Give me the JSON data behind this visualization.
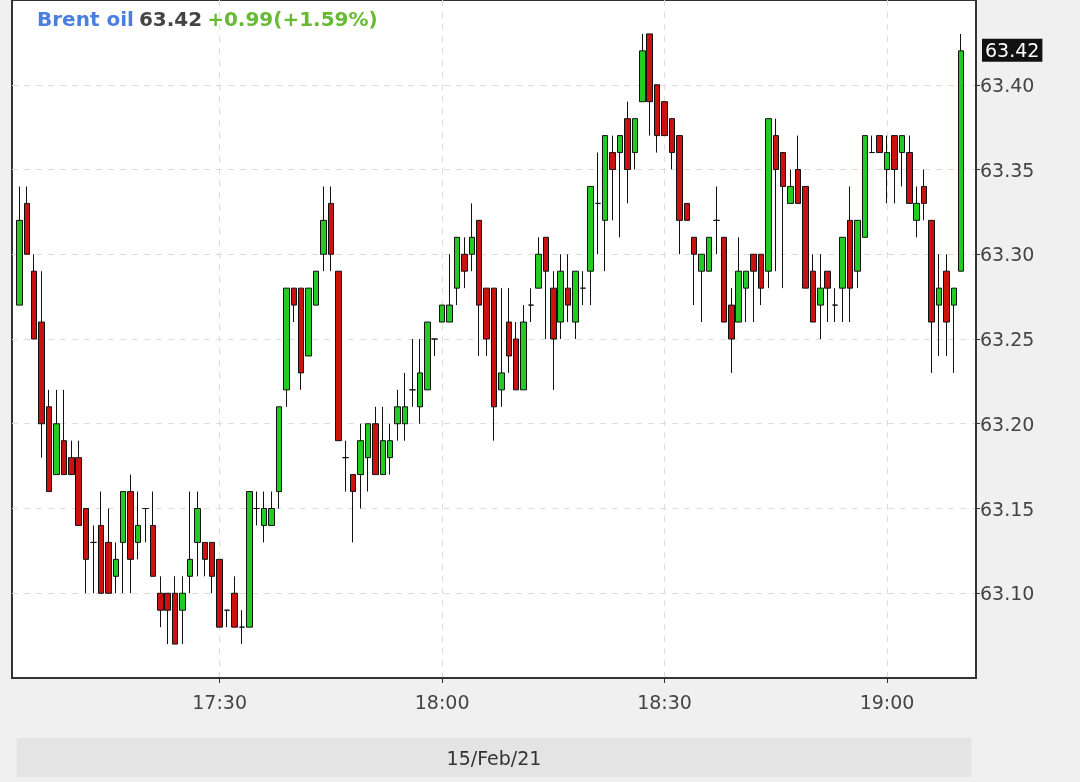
{
  "chart_data": {
    "type": "candlestick",
    "title": "Brent oil",
    "subtitle": "63.42",
    "annotations": [
      "+0.99(+1.59%)",
      "63.42"
    ],
    "xlabel": "15/Feb/21",
    "x": [
      "--02-15T17:03",
      "--02-15T17:04",
      "--02-15T17:05",
      "--02-15T17:06",
      "--02-15T17:07",
      "--02-15T17:08",
      "--02-15T17:09",
      "--02-15T17:10",
      "--02-15T17:11",
      "--02-15T17:12",
      "--02-15T17:13",
      "--02-15T17:14",
      "--02-15T17:15",
      "--02-15T17:16",
      "--02-15T17:17",
      "--02-15T17:18",
      "--02-15T17:19",
      "--02-15T17:20",
      "--02-15T17:21",
      "--02-15T17:22",
      "--02-15T17:23",
      "--02-15T17:24",
      "--02-15T17:25",
      "--02-15T17:26",
      "--02-15T17:27",
      "--02-15T17:28",
      "--02-15T17:29",
      "--02-15T17:30",
      "--02-15T17:31",
      "--02-15T17:32",
      "--02-15T17:33",
      "--02-15T17:34",
      "--02-15T17:35",
      "--02-15T17:36",
      "--02-15T17:37",
      "--02-15T17:38",
      "--02-15T17:39",
      "--02-15T17:40",
      "--02-15T17:41",
      "--02-15T17:42",
      "--02-15T17:43",
      "--02-15T17:44",
      "--02-15T17:45",
      "--02-15T17:46",
      "--02-15T17:47",
      "--02-15T17:48",
      "--02-15T17:49",
      "--02-15T17:50",
      "--02-15T17:51",
      "--02-15T17:52",
      "--02-15T17:53",
      "--02-15T17:54",
      "--02-15T17:55",
      "--02-15T17:56",
      "--02-15T17:57",
      "--02-15T17:58",
      "--02-15T17:59",
      "--02-15T18:00",
      "--02-15T18:01",
      "--02-15T18:02",
      "--02-15T18:03",
      "--02-15T18:04",
      "--02-15T18:05",
      "--02-15T18:06",
      "--02-15T18:07",
      "--02-15T18:08",
      "--02-15T18:09",
      "--02-15T18:10",
      "--02-15T18:11",
      "--02-15T18:12",
      "--02-15T18:13",
      "--02-15T18:14",
      "--02-15T18:15",
      "--02-15T18:16",
      "--02-15T18:17",
      "--02-15T18:18",
      "--02-15T18:19",
      "--02-15T18:20",
      "--02-15T18:21",
      "--02-15T18:22",
      "--02-15T18:23",
      "--02-15T18:24",
      "--02-15T18:25",
      "--02-15T18:26",
      "--02-15T18:27",
      "--02-15T18:28",
      "--02-15T18:29",
      "--02-15T18:30",
      "--02-15T18:31",
      "--02-15T18:32",
      "--02-15T18:33",
      "--02-15T18:34",
      "--02-15T18:35",
      "--02-15T18:36",
      "--02-15T18:37",
      "--02-15T18:38",
      "--02-15T18:39",
      "--02-15T18:40",
      "--02-15T18:41",
      "--02-15T18:42",
      "--02-15T18:43",
      "--02-15T18:44",
      "--02-15T18:45",
      "--02-15T18:46",
      "--02-15T18:47",
      "--02-15T18:48",
      "--02-15T18:49",
      "--02-15T18:50",
      "--02-15T18:51",
      "--02-15T18:52",
      "--02-15T18:53",
      "--02-15T18:54",
      "--02-15T18:55",
      "--02-15T18:56",
      "--02-15T18:57",
      "--02-15T18:58",
      "--02-15T18:59",
      "--02-15T19:00",
      "--02-15T19:01",
      "--02-15T19:02",
      "--02-15T19:03",
      "--02-15T19:04",
      "--02-15T19:05",
      "--02-15T19:06",
      "--02-15T19:07",
      "--02-15T19:08",
      "--02-15T19:09",
      "--02-15T19:10"
    ],
    "ohlc": [
      [
        63.27,
        63.34,
        63.27,
        63.32
      ],
      [
        63.33,
        63.34,
        63.3,
        63.3
      ],
      [
        63.29,
        63.3,
        63.25,
        63.25
      ],
      [
        63.26,
        63.29,
        63.18,
        63.2
      ],
      [
        63.21,
        63.22,
        63.16,
        63.16
      ],
      [
        63.17,
        63.22,
        63.17,
        63.2
      ],
      [
        63.19,
        63.22,
        63.17,
        63.17
      ],
      [
        63.18,
        63.19,
        63.17,
        63.17
      ],
      [
        63.18,
        63.19,
        63.14,
        63.14
      ],
      [
        63.15,
        63.15,
        63.1,
        63.12
      ],
      [
        63.13,
        63.14,
        63.1,
        63.13
      ],
      [
        63.14,
        63.16,
        63.1,
        63.1
      ],
      [
        63.13,
        63.15,
        63.1,
        63.1
      ],
      [
        63.11,
        63.13,
        63.1,
        63.12
      ],
      [
        63.13,
        63.16,
        63.1,
        63.16
      ],
      [
        63.16,
        63.17,
        63.1,
        63.12
      ],
      [
        63.13,
        63.16,
        63.12,
        63.14
      ],
      [
        63.15,
        63.15,
        63.13,
        63.15
      ],
      [
        63.14,
        63.16,
        63.11,
        63.11
      ],
      [
        63.1,
        63.11,
        63.08,
        63.09
      ],
      [
        63.1,
        63.1,
        63.07,
        63.09
      ],
      [
        63.1,
        63.11,
        63.07,
        63.07
      ],
      [
        63.09,
        63.11,
        63.07,
        63.1
      ],
      [
        63.11,
        63.16,
        63.1,
        63.12
      ],
      [
        63.13,
        63.16,
        63.11,
        63.15
      ],
      [
        63.13,
        63.13,
        63.11,
        63.12
      ],
      [
        63.13,
        63.13,
        63.1,
        63.11
      ],
      [
        63.12,
        63.12,
        63.08,
        63.08
      ],
      [
        63.09,
        63.09,
        63.08,
        63.09
      ],
      [
        63.1,
        63.11,
        63.08,
        63.08
      ],
      [
        63.08,
        63.09,
        63.07,
        63.08
      ],
      [
        63.08,
        63.16,
        63.08,
        63.16
      ],
      [
        63.15,
        63.16,
        63.14,
        63.15
      ],
      [
        63.14,
        63.16,
        63.13,
        63.15
      ],
      [
        63.14,
        63.16,
        63.14,
        63.15
      ],
      [
        63.16,
        63.21,
        63.15,
        63.21
      ],
      [
        63.22,
        63.28,
        63.21,
        63.28
      ],
      [
        63.28,
        63.28,
        63.26,
        63.27
      ],
      [
        63.28,
        63.28,
        63.22,
        63.23
      ],
      [
        63.24,
        63.28,
        63.24,
        63.28
      ],
      [
        63.27,
        63.29,
        63.27,
        63.29
      ],
      [
        63.3,
        63.34,
        63.29,
        63.32
      ],
      [
        63.33,
        63.34,
        63.29,
        63.3
      ],
      [
        63.29,
        63.29,
        63.19,
        63.19
      ],
      [
        63.18,
        63.19,
        63.16,
        63.18
      ],
      [
        63.17,
        63.17,
        63.13,
        63.16
      ],
      [
        63.17,
        63.2,
        63.15,
        63.19
      ],
      [
        63.18,
        63.2,
        63.16,
        63.2
      ],
      [
        63.2,
        63.21,
        63.17,
        63.17
      ],
      [
        63.17,
        63.21,
        63.17,
        63.19
      ],
      [
        63.18,
        63.2,
        63.17,
        63.19
      ],
      [
        63.2,
        63.22,
        63.19,
        63.21
      ],
      [
        63.2,
        63.23,
        63.19,
        63.21
      ],
      [
        63.22,
        63.25,
        63.21,
        63.22
      ],
      [
        63.21,
        63.25,
        63.2,
        63.23
      ],
      [
        63.22,
        63.26,
        63.22,
        63.26
      ],
      [
        63.25,
        63.25,
        63.24,
        63.25
      ],
      [
        63.26,
        63.27,
        63.26,
        63.27
      ],
      [
        63.26,
        63.3,
        63.26,
        63.27
      ],
      [
        63.28,
        63.31,
        63.27,
        63.31
      ],
      [
        63.3,
        63.31,
        63.28,
        63.29
      ],
      [
        63.3,
        63.33,
        63.29,
        63.31
      ],
      [
        63.32,
        63.32,
        63.24,
        63.27
      ],
      [
        63.28,
        63.28,
        63.24,
        63.25
      ],
      [
        63.28,
        63.28,
        63.19,
        63.21
      ],
      [
        63.22,
        63.28,
        63.21,
        63.23
      ],
      [
        63.26,
        63.28,
        63.23,
        63.24
      ],
      [
        63.25,
        63.26,
        63.22,
        63.22
      ],
      [
        63.22,
        63.27,
        63.22,
        63.26
      ],
      [
        63.27,
        63.28,
        63.26,
        63.27
      ],
      [
        63.28,
        63.31,
        63.28,
        63.3
      ],
      [
        63.31,
        63.31,
        63.25,
        63.29
      ],
      [
        63.28,
        63.29,
        63.22,
        63.25
      ],
      [
        63.26,
        63.3,
        63.25,
        63.29
      ],
      [
        63.28,
        63.3,
        63.26,
        63.27
      ],
      [
        63.26,
        63.29,
        63.25,
        63.29
      ],
      [
        63.28,
        63.29,
        63.27,
        63.28
      ],
      [
        63.29,
        63.34,
        63.27,
        63.34
      ],
      [
        63.33,
        63.36,
        63.3,
        63.33
      ],
      [
        63.32,
        63.37,
        63.29,
        63.37
      ],
      [
        63.36,
        63.37,
        63.32,
        63.35
      ],
      [
        63.36,
        63.37,
        63.31,
        63.37
      ],
      [
        63.38,
        63.39,
        63.33,
        63.35
      ],
      [
        63.36,
        63.38,
        63.35,
        63.38
      ],
      [
        63.39,
        63.43,
        63.39,
        63.42
      ],
      [
        63.43,
        63.43,
        63.37,
        63.39
      ],
      [
        63.4,
        63.4,
        63.36,
        63.37
      ],
      [
        63.39,
        63.39,
        63.37,
        63.37
      ],
      [
        63.38,
        63.38,
        63.35,
        63.36
      ],
      [
        63.37,
        63.37,
        63.3,
        63.32
      ],
      [
        63.33,
        63.33,
        63.32,
        63.32
      ],
      [
        63.31,
        63.31,
        63.27,
        63.3
      ],
      [
        63.29,
        63.3,
        63.26,
        63.3
      ],
      [
        63.29,
        63.31,
        63.29,
        63.31
      ],
      [
        63.32,
        63.34,
        63.3,
        63.32
      ],
      [
        63.31,
        63.31,
        63.26,
        63.26
      ],
      [
        63.27,
        63.28,
        63.23,
        63.25
      ],
      [
        63.26,
        63.31,
        63.26,
        63.29
      ],
      [
        63.28,
        63.29,
        63.26,
        63.29
      ],
      [
        63.3,
        63.3,
        63.26,
        63.29
      ],
      [
        63.3,
        63.3,
        63.27,
        63.28
      ],
      [
        63.29,
        63.38,
        63.28,
        63.38
      ],
      [
        63.37,
        63.38,
        63.29,
        63.35
      ],
      [
        63.36,
        63.36,
        63.28,
        63.34
      ],
      [
        63.33,
        63.35,
        63.33,
        63.34
      ],
      [
        63.35,
        63.37,
        63.33,
        63.33
      ],
      [
        63.34,
        63.34,
        63.28,
        63.28
      ],
      [
        63.29,
        63.3,
        63.26,
        63.26
      ],
      [
        63.27,
        63.3,
        63.25,
        63.28
      ],
      [
        63.29,
        63.29,
        63.26,
        63.28
      ],
      [
        63.27,
        63.28,
        63.26,
        63.27
      ],
      [
        63.28,
        63.31,
        63.26,
        63.31
      ],
      [
        63.32,
        63.34,
        63.26,
        63.28
      ],
      [
        63.29,
        63.32,
        63.28,
        63.32
      ],
      [
        63.31,
        63.37,
        63.31,
        63.37
      ],
      [
        63.36,
        63.37,
        63.36,
        63.36
      ],
      [
        63.37,
        63.37,
        63.36,
        63.36
      ],
      [
        63.35,
        63.37,
        63.33,
        63.36
      ],
      [
        63.37,
        63.37,
        63.33,
        63.35
      ],
      [
        63.36,
        63.37,
        63.34,
        63.37
      ],
      [
        63.36,
        63.37,
        63.33,
        63.33
      ],
      [
        63.32,
        63.34,
        63.31,
        63.33
      ],
      [
        63.34,
        63.35,
        63.32,
        63.33
      ],
      [
        63.32,
        63.32,
        63.23,
        63.26
      ],
      [
        63.27,
        63.3,
        63.24,
        63.28
      ],
      [
        63.29,
        63.3,
        63.24,
        63.26
      ],
      [
        63.27,
        63.28,
        63.23,
        63.28
      ],
      [
        63.29,
        63.43,
        63.29,
        63.42
      ]
    ],
    "xlim": [
      "--02-15T17:02",
      "--02-15T19:12"
    ],
    "xticks": [
      {
        "value": "--02-15T17:30",
        "label": "17:30"
      },
      {
        "value": "--02-15T18:00",
        "label": "18:00"
      },
      {
        "value": "--02-15T18:30",
        "label": "18:30"
      },
      {
        "value": "--02-15T19:00",
        "label": "19:00"
      }
    ],
    "ylim": [
      63.05,
      63.45
    ],
    "yticks": [
      {
        "value": 63.1,
        "label": "63.10"
      },
      63.15,
      {
        "value": 63.2,
        "label": "63.20"
      },
      63.25,
      {
        "value": 63.3,
        "label": "63.30"
      },
      63.35,
      {
        "value": 63.4,
        "label": "63.40"
      }
    ],
    "grid": true
  }
}
